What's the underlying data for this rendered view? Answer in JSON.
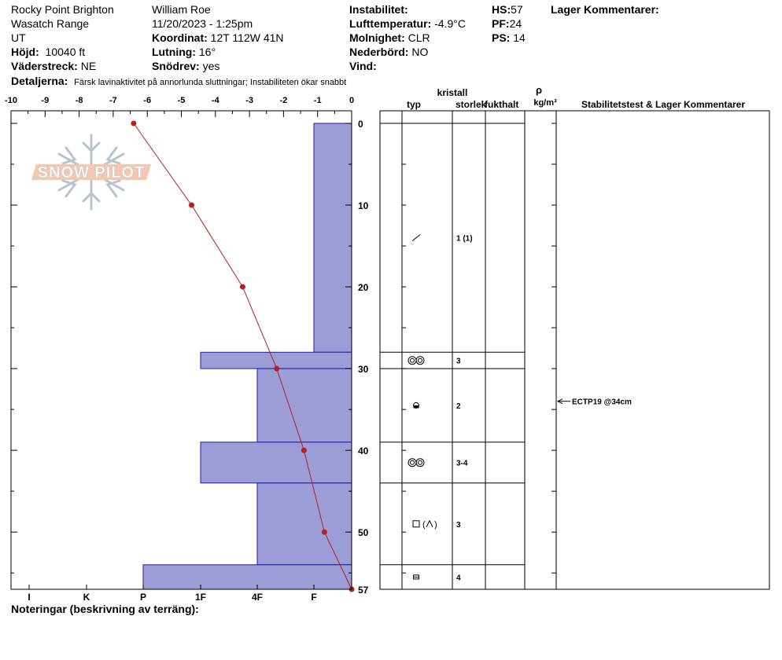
{
  "header": {
    "location": "Rocky Point Brighton",
    "range": "Wasatch Range",
    "state": "UT",
    "elevation_label": "Höjd:",
    "elevation": "10040 ft",
    "aspect_label": "Väderstreck:",
    "aspect": "NE",
    "details_label": "Detaljerna:",
    "details": "Färsk lavinaktivitet på annorlunda sluttningar;  Instabiliteten ökar snabbt",
    "observer": "William  Roe",
    "datetime": "11/20/2023 - 1:25pm",
    "coord_label": "Koordinat:",
    "coord": "12T 112W 41N",
    "slope_label": "Lutning:",
    "slope": "16°",
    "wind_loading_label": "Snödrev:",
    "wind_loading": "yes",
    "instability_label": "Instabilitet:",
    "air_temp_label": "Lufttemperatur:",
    "air_temp": "-4.9°C",
    "sky_label": "Molnighet:",
    "sky": "CLR",
    "precip_label": "Nederbörd:",
    "precip": "NO",
    "wind_label": "Vind:",
    "hs_label": "HS:",
    "hs": "57",
    "pf_label": "PF:",
    "pf": "24",
    "ps_label": "PS:",
    "ps": "14",
    "layer_comments_label": "Lager Kommentarer:"
  },
  "footer": {
    "notes_label": "Noteringar (beskrivning av terräng):"
  },
  "logo": {
    "text": "SNOW PILOT"
  },
  "chart_data": {
    "type": "bar",
    "temperature_axis": {
      "ticks": [
        "-10",
        "-9",
        "-8",
        "-7",
        "-6",
        "-5",
        "-4",
        "-3",
        "-2",
        "-1",
        "0"
      ],
      "range": [
        -10,
        0
      ]
    },
    "depth_axis": {
      "ticks": [
        "0",
        "10",
        "20",
        "30",
        "40",
        "50",
        "57"
      ],
      "range": [
        0,
        57
      ]
    },
    "hardness_axis": {
      "ticks": [
        "I",
        "K",
        "P",
        "1F",
        "4F",
        "F"
      ]
    },
    "hardness_profile": [
      {
        "top": 0,
        "bottom": 28,
        "hardness": "F"
      },
      {
        "top": 28,
        "bottom": 30,
        "hardness": "1F"
      },
      {
        "top": 30,
        "bottom": 39,
        "hardness": "4F"
      },
      {
        "top": 39,
        "bottom": 44,
        "hardness": "1F"
      },
      {
        "top": 44,
        "bottom": 54,
        "hardness": "4F"
      },
      {
        "top": 54,
        "bottom": 57,
        "hardness": "P"
      }
    ],
    "temperature_profile": [
      {
        "depth": 0,
        "temp": -6.4
      },
      {
        "depth": 10,
        "temp": -4.7
      },
      {
        "depth": 20,
        "temp": -3.2
      },
      {
        "depth": 30,
        "temp": -2.2
      },
      {
        "depth": 40,
        "temp": -1.4
      },
      {
        "depth": 50,
        "temp": -0.8
      },
      {
        "depth": 57,
        "temp": 0
      }
    ],
    "colors": {
      "bar_fill": "#9c9cd6",
      "bar_stroke": "#1c1cb0",
      "temp_line": "#b22222"
    }
  },
  "layer_table": {
    "headers": {
      "crystal": "kristall",
      "type": "typ",
      "size": "storlek",
      "moisture": "fukthalt",
      "rho": "ρ",
      "density_unit": "kg/m³",
      "stability": "Stabilitetstest & Lager Kommentarer"
    },
    "layers": [
      {
        "top": 0,
        "bottom": 28,
        "type_icon": "new-snow-icon",
        "size": "1 (1)"
      },
      {
        "top": 28,
        "bottom": 30,
        "type_icon": "melt-form-icon",
        "size": "3"
      },
      {
        "top": 30,
        "bottom": 39,
        "type_icon": "rounded-faceted-icon",
        "size": "2"
      },
      {
        "top": 39,
        "bottom": 44,
        "type_icon": "melt-form-icon",
        "size": "3-4"
      },
      {
        "top": 44,
        "bottom": 54,
        "type_icon": "faceted-depth-hoar-icon",
        "size": "3"
      },
      {
        "top": 54,
        "bottom": 57,
        "type_icon": "faceted-rounding-icon",
        "size": "4"
      }
    ],
    "stability_tests": [
      {
        "depth": 34,
        "label": "ECTP19 @34cm"
      }
    ]
  }
}
